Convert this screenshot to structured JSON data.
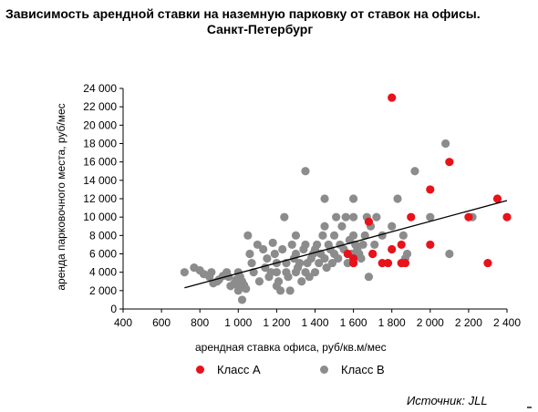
{
  "title": {
    "line1": "Зависимость арендной ставки на наземную парковку от ставок на офисы.",
    "line2": "Санкт-Петербург"
  },
  "source": "Источник: JLL",
  "chart_data": {
    "type": "scatter",
    "title": "Зависимость арендной ставки на наземную парковку от ставок на офисы. Санкт-Петербург",
    "xlabel": "арендная ставка офиса, руб/кв.м/мес",
    "ylabel": "аренда парковочного места, руб/мес",
    "xlim": [
      400,
      2400
    ],
    "ylim": [
      0,
      24000
    ],
    "x_ticks": [
      400,
      600,
      800,
      1000,
      1200,
      1400,
      1600,
      1800,
      2000,
      2200,
      2400
    ],
    "x_tick_labels": [
      "400",
      "600",
      "800",
      "1 000",
      "1 200",
      "1 400",
      "1 600",
      "1 800",
      "2 000",
      "2 200",
      "2 400"
    ],
    "y_ticks": [
      0,
      2000,
      4000,
      6000,
      8000,
      10000,
      12000,
      14000,
      16000,
      18000,
      20000,
      22000,
      24000
    ],
    "y_tick_labels": [
      "0",
      "2 000",
      "4 000",
      "6 000",
      "8 000",
      "10 000",
      "12 000",
      "14 000",
      "16 000",
      "18 000",
      "20 000",
      "22 000",
      "24 000"
    ],
    "grid": false,
    "legend_position": "bottom",
    "series": [
      {
        "name": "Класс A",
        "color": "#e8121b",
        "points": [
          [
            1800,
            23000
          ],
          [
            2100,
            16000
          ],
          [
            2000,
            13000
          ],
          [
            2350,
            12000
          ],
          [
            2200,
            10000
          ],
          [
            2400,
            10000
          ],
          [
            1900,
            10000
          ],
          [
            1680,
            9500
          ],
          [
            1850,
            7000
          ],
          [
            2000,
            7000
          ],
          [
            1800,
            6500
          ],
          [
            1700,
            6000
          ],
          [
            1600,
            5500
          ],
          [
            1600,
            5000
          ],
          [
            1750,
            5000
          ],
          [
            1780,
            5000
          ],
          [
            1850,
            5000
          ],
          [
            1870,
            5000
          ],
          [
            2300,
            5000
          ],
          [
            1570,
            6000
          ]
        ]
      },
      {
        "name": "Класс B",
        "color": "#8c8c8c",
        "points": [
          [
            720,
            4000
          ],
          [
            770,
            4500
          ],
          [
            800,
            4200
          ],
          [
            820,
            3800
          ],
          [
            850,
            3500
          ],
          [
            860,
            4000
          ],
          [
            870,
            2800
          ],
          [
            890,
            3000
          ],
          [
            900,
            3200
          ],
          [
            920,
            3600
          ],
          [
            940,
            4000
          ],
          [
            950,
            3500
          ],
          [
            960,
            2500
          ],
          [
            980,
            2800
          ],
          [
            990,
            3200
          ],
          [
            1000,
            2000
          ],
          [
            1000,
            3000
          ],
          [
            1000,
            4000
          ],
          [
            1000,
            2500
          ],
          [
            1010,
            3500
          ],
          [
            1020,
            3000
          ],
          [
            1030,
            2600
          ],
          [
            1040,
            2200
          ],
          [
            1020,
            1000
          ],
          [
            1050,
            8000
          ],
          [
            1060,
            6000
          ],
          [
            1070,
            5000
          ],
          [
            1080,
            4000
          ],
          [
            1100,
            7000
          ],
          [
            1110,
            3000
          ],
          [
            1130,
            6500
          ],
          [
            1140,
            4500
          ],
          [
            1150,
            5500
          ],
          [
            1160,
            3500
          ],
          [
            1170,
            4000
          ],
          [
            1180,
            7200
          ],
          [
            1190,
            6000
          ],
          [
            1200,
            5000
          ],
          [
            1200,
            2500
          ],
          [
            1200,
            4000
          ],
          [
            1210,
            3000
          ],
          [
            1220,
            2000
          ],
          [
            1230,
            6500
          ],
          [
            1240,
            10000
          ],
          [
            1250,
            5000
          ],
          [
            1250,
            4000
          ],
          [
            1260,
            3500
          ],
          [
            1270,
            2000
          ],
          [
            1280,
            7000
          ],
          [
            1290,
            5500
          ],
          [
            1300,
            6000
          ],
          [
            1300,
            8000
          ],
          [
            1300,
            4000
          ],
          [
            1310,
            4500
          ],
          [
            1320,
            5000
          ],
          [
            1330,
            3000
          ],
          [
            1340,
            6500
          ],
          [
            1350,
            7000
          ],
          [
            1350,
            15000
          ],
          [
            1350,
            4000
          ],
          [
            1360,
            5000
          ],
          [
            1370,
            3500
          ],
          [
            1380,
            5500
          ],
          [
            1390,
            6000
          ],
          [
            1400,
            4000
          ],
          [
            1400,
            6500
          ],
          [
            1410,
            7000
          ],
          [
            1420,
            5000
          ],
          [
            1430,
            6000
          ],
          [
            1440,
            8000
          ],
          [
            1450,
            12000
          ],
          [
            1450,
            9000
          ],
          [
            1450,
            5500
          ],
          [
            1460,
            4500
          ],
          [
            1470,
            7000
          ],
          [
            1480,
            6500
          ],
          [
            1490,
            5000
          ],
          [
            1500,
            6000
          ],
          [
            1500,
            8000
          ],
          [
            1510,
            10000
          ],
          [
            1520,
            5500
          ],
          [
            1530,
            7000
          ],
          [
            1540,
            9000
          ],
          [
            1550,
            6500
          ],
          [
            1560,
            10000
          ],
          [
            1570,
            5000
          ],
          [
            1580,
            7500
          ],
          [
            1590,
            6000
          ],
          [
            1600,
            12000
          ],
          [
            1600,
            10000
          ],
          [
            1600,
            8000
          ],
          [
            1610,
            7000
          ],
          [
            1620,
            6500
          ],
          [
            1630,
            6000
          ],
          [
            1640,
            5500
          ],
          [
            1650,
            7000
          ],
          [
            1660,
            8000
          ],
          [
            1670,
            10000
          ],
          [
            1680,
            3500
          ],
          [
            1690,
            9000
          ],
          [
            1700,
            6000
          ],
          [
            1710,
            7000
          ],
          [
            1720,
            10000
          ],
          [
            1750,
            8000
          ],
          [
            1800,
            9000
          ],
          [
            1830,
            12000
          ],
          [
            1860,
            8000
          ],
          [
            1870,
            5500
          ],
          [
            1880,
            6000
          ],
          [
            1920,
            15000
          ],
          [
            2000,
            10000
          ],
          [
            2080,
            18000
          ],
          [
            2100,
            6000
          ],
          [
            2220,
            10000
          ]
        ]
      }
    ],
    "trendline": {
      "type": "linear",
      "from": [
        720,
        2300
      ],
      "to": [
        2400,
        11800
      ],
      "color": "#000000"
    }
  }
}
